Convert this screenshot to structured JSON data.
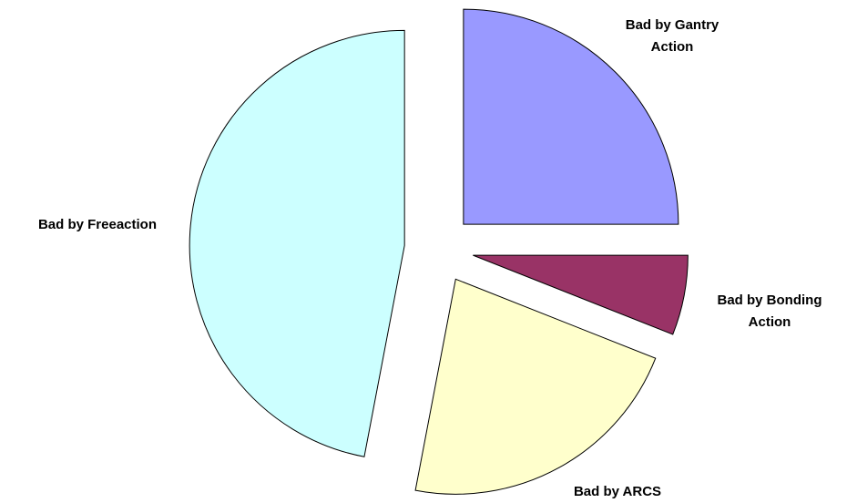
{
  "chart_data": {
    "type": "pie",
    "categories": [
      "Bad by Gantry Action",
      "Bad by Bonding Action",
      "Bad by ARCS",
      "Bad by Freeaction"
    ],
    "values": [
      25,
      6,
      22,
      47
    ],
    "colors": [
      "#9999ff",
      "#993366",
      "#ffffcc",
      "#ccffff"
    ],
    "exploded": true
  }
}
